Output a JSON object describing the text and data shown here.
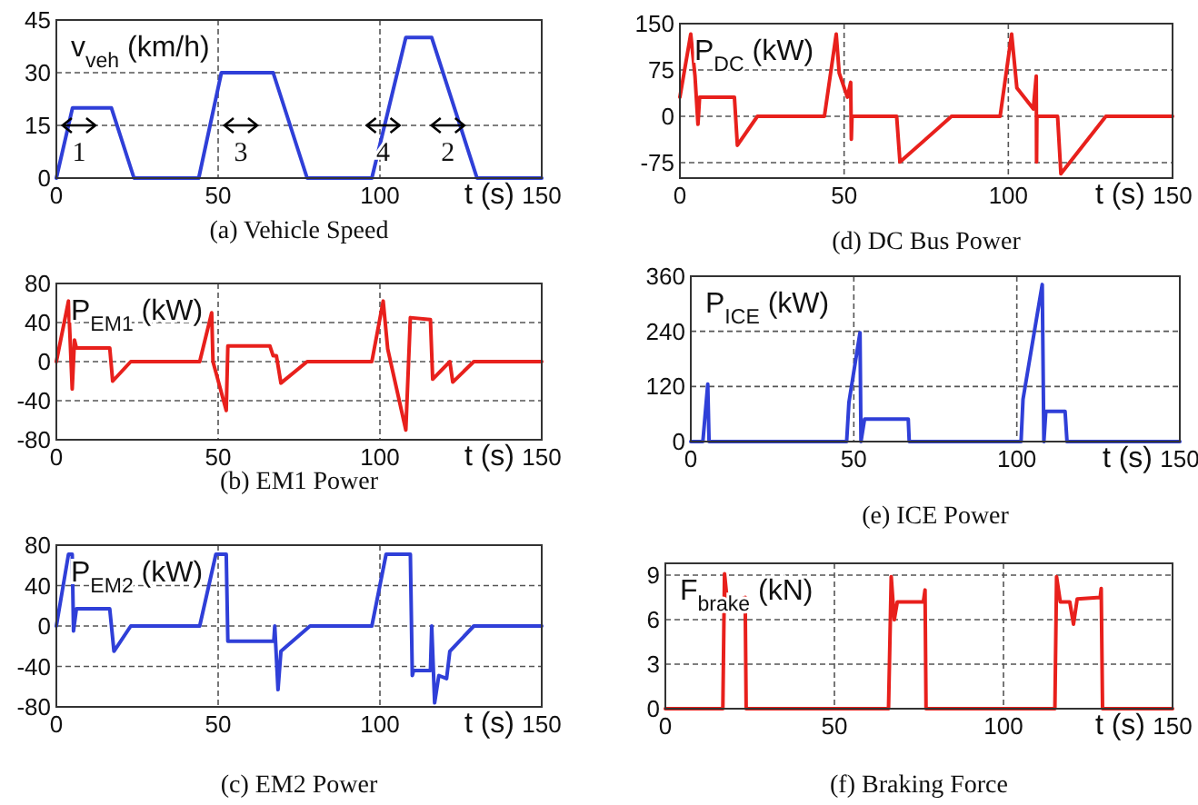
{
  "chart_data": [
    {
      "type": "line",
      "title": "(a) Vehicle Speed",
      "ylabel": "v$_{veh}$ (km/h)",
      "xlabel": "t (s)",
      "xlim": [
        0,
        150
      ],
      "xticks": [
        0,
        50,
        100,
        150
      ],
      "ylim": [
        0,
        45
      ],
      "yticks": [
        0,
        15,
        30,
        45
      ],
      "grid": true,
      "series": [
        {
          "color": "#2f3fd8",
          "x": [
            0,
            5,
            17,
            24,
            44,
            51,
            67,
            77.5,
            97.5,
            108,
            116,
            130,
            150
          ],
          "values": [
            0,
            20,
            20,
            0,
            0,
            30,
            30,
            0,
            0,
            40,
            40,
            0,
            0
          ]
        }
      ],
      "annotations": [
        "1",
        "3",
        "4",
        "2"
      ]
    },
    {
      "type": "line",
      "title": "(d) DC Bus Power",
      "ylabel": "P$_{DC}$ (kW)",
      "xlabel": "t (s)",
      "xlim": [
        0,
        150
      ],
      "xticks": [
        0,
        50,
        100,
        150
      ],
      "ylim": [
        -100,
        150
      ],
      "yticks": [
        -75,
        0,
        75,
        150
      ],
      "grid": true,
      "series": [
        {
          "color": "#e8201c",
          "x": [
            0,
            3.3,
            4.6,
            5.5,
            6,
            16.6,
            17.5,
            23.6,
            44,
            47.6,
            48.5,
            51,
            52,
            52.2,
            52.4,
            66,
            67,
            82.7,
            97.5,
            101,
            102.6,
            107.6,
            108.5,
            108.6,
            108.7,
            110.5,
            115,
            116,
            129.7,
            150
          ],
          "values": [
            31,
            133,
            65,
            -13,
            31,
            31,
            -47,
            0,
            0,
            133,
            70,
            31,
            55,
            -37,
            0,
            0,
            -74,
            0,
            0,
            133,
            46,
            12,
            65,
            -74,
            0,
            0,
            0,
            -93,
            0,
            0
          ]
        }
      ]
    },
    {
      "type": "line",
      "title": "(b) EM1 Power",
      "ylabel": "P$_{EM1}$ (kW)",
      "xlabel": "t (s)",
      "xlim": [
        0,
        150
      ],
      "xticks": [
        0,
        50,
        100,
        150
      ],
      "ylim": [
        -80,
        80
      ],
      "yticks": [
        -80,
        -40,
        0,
        40,
        80
      ],
      "grid": true,
      "series": [
        {
          "color": "#e8201c",
          "x": [
            0,
            3.75,
            4.9,
            5.6,
            6.2,
            16.5,
            17.4,
            23,
            44.3,
            48,
            48.4,
            52.5,
            53,
            66,
            67,
            68,
            69.4,
            77.5,
            97.5,
            101,
            102.4,
            108,
            109.4,
            115.6,
            116.3,
            121.6,
            122.5,
            129,
            150
          ],
          "values": [
            0,
            62,
            -28,
            22,
            14,
            14,
            -20,
            0,
            0,
            50,
            0,
            -50,
            16,
            16,
            6,
            6,
            -22,
            0,
            0,
            62,
            13,
            -70,
            45,
            43,
            -18,
            0,
            -21,
            0,
            0
          ]
        }
      ]
    },
    {
      "type": "line",
      "title": "(e) ICE Power",
      "ylabel": "P$_{ICE}$ (kW)",
      "xlabel": "t (s)",
      "xlim": [
        0,
        150
      ],
      "xticks": [
        0,
        50,
        100,
        150
      ],
      "ylim": [
        0,
        360
      ],
      "yticks": [
        0,
        120,
        240,
        360
      ],
      "grid": true,
      "series": [
        {
          "color": "#2f3fd8",
          "x": [
            0,
            3.7,
            5.2,
            5.6,
            47.8,
            48.5,
            51.9,
            52.2,
            53.3,
            66.7,
            67,
            101.3,
            101.9,
            107.8,
            108.3,
            108.9,
            114.8,
            115.4,
            150
          ],
          "values": [
            0,
            0,
            125,
            0,
            0,
            85,
            237,
            0,
            49,
            49,
            0,
            0,
            92,
            342,
            0,
            66,
            66,
            0,
            0
          ]
        }
      ]
    },
    {
      "type": "line",
      "title": "(c) EM2 Power",
      "ylabel": "P$_{EM2}$ (kW)",
      "xlabel": "t (s)",
      "xlim": [
        0,
        150
      ],
      "xticks": [
        0,
        50,
        100,
        150
      ],
      "ylim": [
        -80,
        80
      ],
      "yticks": [
        -80,
        -40,
        0,
        40,
        80
      ],
      "grid": true,
      "series": [
        {
          "color": "#2f3fd8",
          "x": [
            0,
            3.75,
            4.9,
            5.3,
            6.2,
            16.5,
            17.8,
            23,
            44.3,
            49.3,
            52.5,
            53,
            67.2,
            67.5,
            68.5,
            69.4,
            78.4,
            97.5,
            101.9,
            109.4,
            110,
            110.4,
            115.6,
            116,
            116.9,
            118.2,
            120.6,
            121.6,
            129,
            150
          ],
          "values": [
            0,
            71,
            71,
            -5,
            17,
            17,
            -25,
            0,
            0,
            71,
            71,
            -15,
            -15,
            0,
            -63,
            -25,
            0,
            0,
            71,
            71,
            -49,
            -44,
            -44,
            0,
            -76,
            -49,
            -52,
            -25,
            0,
            0
          ]
        }
      ]
    },
    {
      "type": "line",
      "title": "(f) Braking Force",
      "ylabel": "F$_{brake}$ (kN)",
      "xlabel": "t (s)",
      "xlim": [
        0,
        150
      ],
      "xticks": [
        0,
        50,
        100,
        150
      ],
      "ylim": [
        0,
        9.8
      ],
      "yticks": [
        0,
        3,
        6,
        9
      ],
      "grid": true,
      "series": [
        {
          "color": "#e8201c",
          "x": [
            0,
            17,
            17.5,
            18.2,
            19.1,
            22.7,
            23.6,
            23.9,
            66,
            66.8,
            67.7,
            68.6,
            76.3,
            76.8,
            77.1,
            115.2,
            115.7,
            116.8,
            119.6,
            120.7,
            121.8,
            128.6,
            128.9,
            129.3,
            150
          ],
          "values": [
            0,
            0,
            9.1,
            7.5,
            7.2,
            7.4,
            7.5,
            0,
            0,
            8.9,
            6,
            7.2,
            7.2,
            8,
            0,
            0,
            8.9,
            7.2,
            7.2,
            5.7,
            7.4,
            7.5,
            8.1,
            0,
            0
          ]
        }
      ]
    }
  ]
}
